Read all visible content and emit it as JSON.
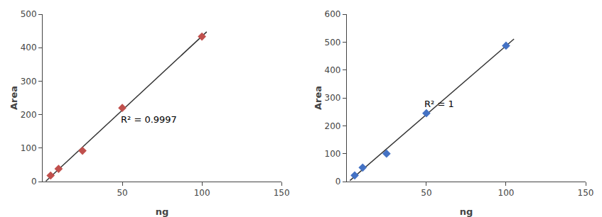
{
  "chart_data": [
    {
      "type": "scatter",
      "xlabel": "ng",
      "ylabel": "Area",
      "xlim": [
        0,
        150
      ],
      "ylim": [
        0,
        500
      ],
      "xticks": [
        50,
        100,
        150
      ],
      "yticks": [
        0,
        100,
        200,
        300,
        400,
        500
      ],
      "grid": false,
      "series": [
        {
          "type": "line",
          "color": "#333333",
          "line_style": "solid",
          "x": [
            2,
            103
          ],
          "values": [
            1.202985074627,
            447.277943615257
          ]
        },
        {
          "type": "scatter",
          "color": "#C0504D",
          "marker": "diamond",
          "x": [
            5,
            10,
            25,
            50,
            100
          ],
          "values": [
            18,
            38,
            92,
            220,
            433
          ]
        }
      ],
      "annotations": [
        {
          "text": "R² = 0.9997",
          "x": 48,
          "y": 165
        }
      ]
    },
    {
      "type": "scatter",
      "xlabel": "ng",
      "ylabel": "Area",
      "xlim": [
        0,
        150
      ],
      "ylim": [
        0,
        600
      ],
      "xticks": [
        50,
        100,
        150
      ],
      "yticks": [
        0,
        100,
        200,
        300,
        400,
        500,
        600
      ],
      "grid": false,
      "series": [
        {
          "type": "line",
          "color": "#333333",
          "line_style": "solid",
          "x": [
            2,
            105
          ],
          "values": [
            3.438805970149,
            510.888888888889
          ]
        },
        {
          "type": "scatter",
          "color": "#4472C4",
          "marker": "diamond",
          "x": [
            5,
            10,
            25,
            50,
            100
          ],
          "values": [
            22,
            50,
            100,
            245,
            487
          ]
        }
      ],
      "annotations": [
        {
          "text": "R² = 1",
          "x": 48,
          "y": 255
        }
      ]
    }
  ]
}
